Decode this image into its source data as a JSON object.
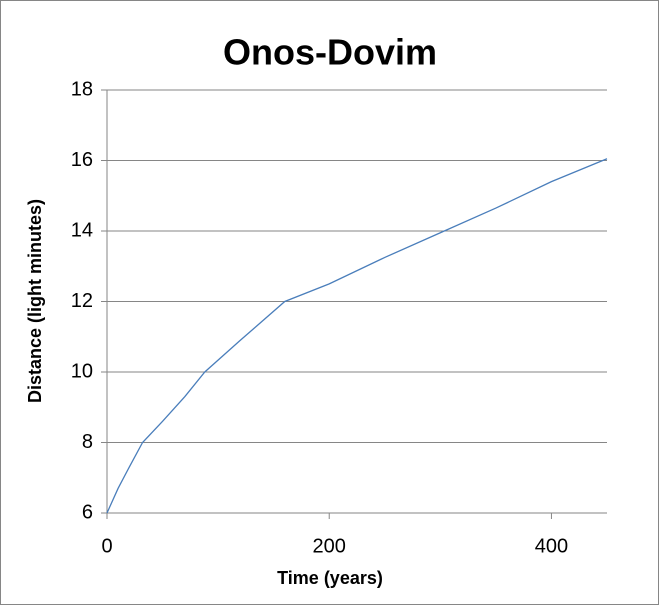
{
  "chart_data": {
    "type": "line",
    "title": "Onos-Dovim",
    "x_label": "Time (years)",
    "y_label": "Distance (light minutes)",
    "x": [
      0,
      10,
      20,
      32,
      50,
      70,
      88,
      120,
      160,
      200,
      250,
      300,
      350,
      400,
      450
    ],
    "series": [
      {
        "name": "Distance",
        "color": "#4a7ebb",
        "values": [
          6,
          6.7,
          7.3,
          8,
          8.6,
          9.3,
          10,
          10.9,
          12,
          12.5,
          13.25,
          13.95,
          14.65,
          15.4,
          16.05
        ]
      }
    ],
    "xlim": [
      0,
      450
    ],
    "xticks": [
      0,
      200,
      400
    ],
    "ylim": [
      6,
      18
    ],
    "yticks": [
      6,
      8,
      10,
      12,
      14,
      16,
      18
    ],
    "grid": true
  }
}
